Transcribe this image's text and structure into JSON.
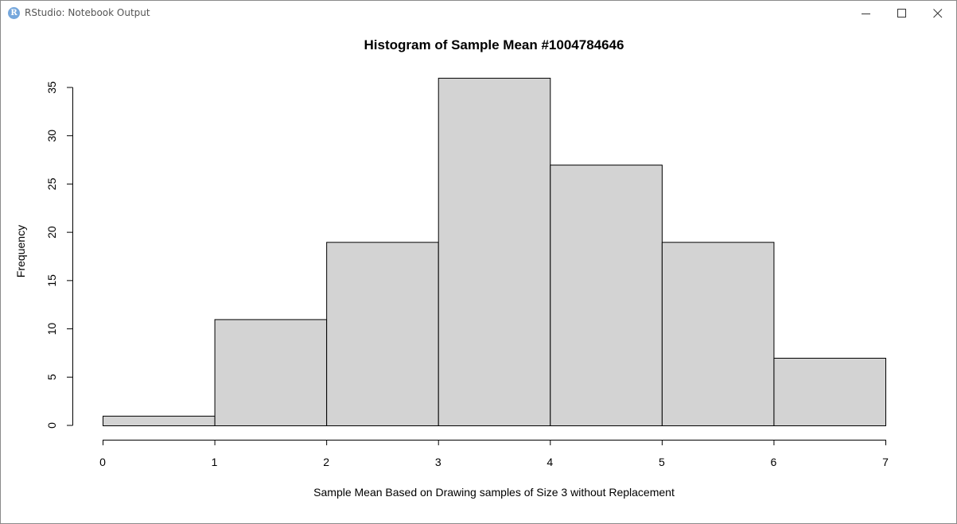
{
  "window": {
    "title": "RStudio: Notebook Output",
    "app_icon_letter": "R",
    "controls": [
      "minimize-icon",
      "maximize-icon",
      "close-icon"
    ]
  },
  "chart_data": {
    "type": "bar",
    "subtype": "histogram",
    "title": "Histogram of Sample Mean #1004784646",
    "xlabel": "Sample Mean Based on Drawing samples of Size 3 without Replacement",
    "ylabel": "Frequency",
    "bins": [
      {
        "x0": 0,
        "x1": 1,
        "count": 1
      },
      {
        "x0": 1,
        "x1": 2,
        "count": 11
      },
      {
        "x0": 2,
        "x1": 3,
        "count": 19
      },
      {
        "x0": 3,
        "x1": 4,
        "count": 36
      },
      {
        "x0": 4,
        "x1": 5,
        "count": 27
      },
      {
        "x0": 5,
        "x1": 6,
        "count": 19
      },
      {
        "x0": 6,
        "x1": 7,
        "count": 7
      }
    ],
    "xlim": [
      0,
      7
    ],
    "ylim": [
      0,
      35
    ],
    "x_ticks": [
      0,
      1,
      2,
      3,
      4,
      5,
      6,
      7
    ],
    "y_ticks": [
      0,
      5,
      10,
      15,
      20,
      25,
      30,
      35
    ],
    "bar_fill": "#d3d3d3",
    "bar_stroke": "#000000",
    "grid": false,
    "legend": "none"
  }
}
